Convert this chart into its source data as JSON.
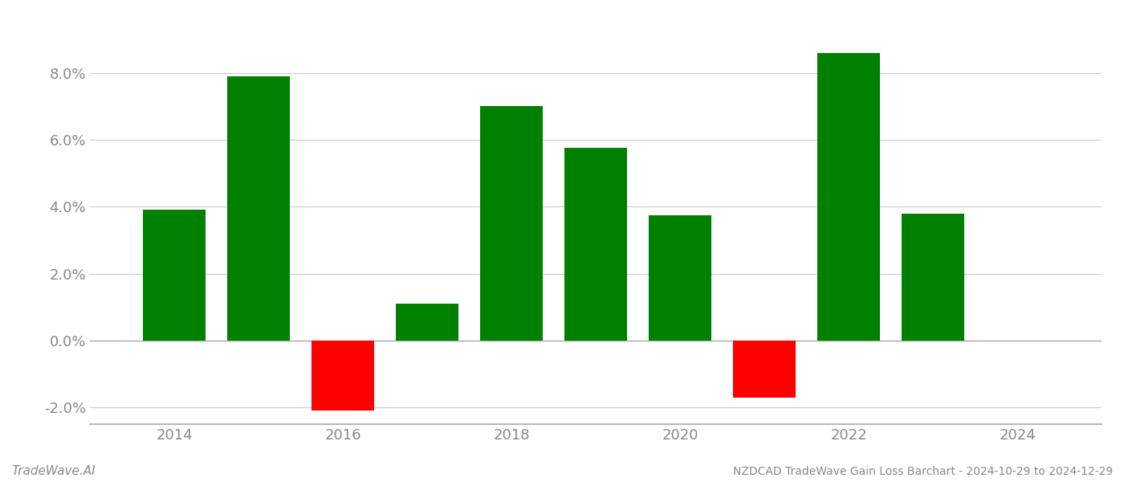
{
  "years": [
    2014,
    2015,
    2016,
    2017,
    2018,
    2019,
    2020,
    2021,
    2022,
    2023
  ],
  "values": [
    0.039,
    0.079,
    -0.021,
    0.011,
    0.07,
    0.0575,
    0.0375,
    -0.017,
    0.086,
    0.038
  ],
  "colors_positive": "#008000",
  "colors_negative": "#ff0000",
  "title": "NZDCAD TradeWave Gain Loss Barchart - 2024-10-29 to 2024-12-29",
  "watermark": "TradeWave.AI",
  "background_color": "#ffffff",
  "grid_color": "#cccccc",
  "axis_color": "#888888",
  "xlim": [
    2013.0,
    2025.0
  ],
  "ylim": [
    -0.025,
    0.096
  ],
  "yticks": [
    -0.02,
    0.0,
    0.02,
    0.04,
    0.06,
    0.08
  ],
  "xticks": [
    2014,
    2016,
    2018,
    2020,
    2022,
    2024
  ],
  "bar_width": 0.75
}
